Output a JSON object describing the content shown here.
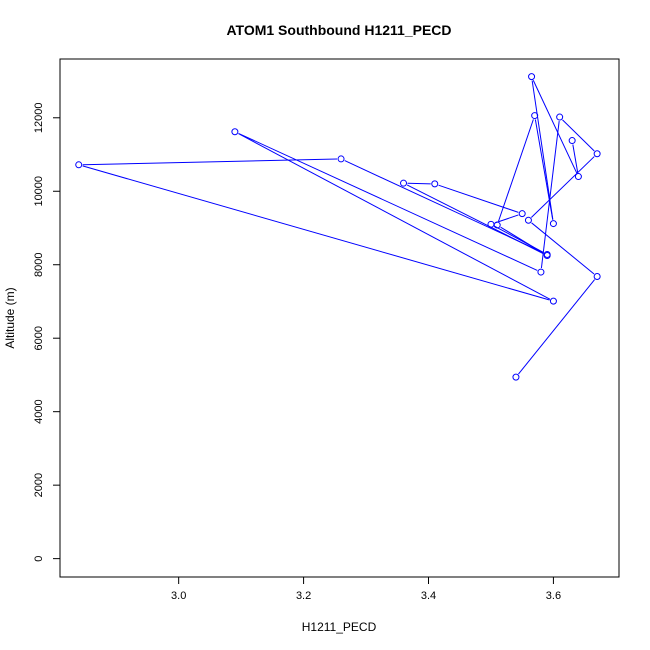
{
  "chart_data": {
    "type": "line",
    "title": "ATOM1 Southbound H1211_PECD",
    "xlabel": "H1211_PECD",
    "ylabel": "Altitude (m)",
    "xlim": [
      2.81,
      3.705
    ],
    "ylim": [
      -500,
      13600
    ],
    "x_ticks": [
      3.0,
      3.2,
      3.4,
      3.6
    ],
    "x_tick_labels": [
      "3.0",
      "3.2",
      "3.4",
      "3.6"
    ],
    "y_ticks": [
      0,
      2000,
      4000,
      6000,
      8000,
      10000,
      12000
    ],
    "y_tick_labels": [
      "0",
      "2000",
      "4000",
      "6000",
      "8000",
      "10000",
      "12000"
    ],
    "grid": false,
    "legend": "none",
    "series": [
      {
        "color": "#0000ff",
        "marker": "open-circle",
        "points": [
          [
            3.54,
            4940
          ],
          [
            3.67,
            7680
          ],
          [
            3.56,
            9210
          ],
          [
            3.67,
            11020
          ],
          [
            3.61,
            12020
          ],
          [
            3.58,
            7800
          ],
          [
            3.09,
            11620
          ],
          [
            3.6,
            7010
          ],
          [
            2.84,
            10720
          ],
          [
            3.26,
            10880
          ],
          [
            3.59,
            8280
          ],
          [
            3.5,
            9100
          ],
          [
            3.55,
            9390
          ],
          [
            3.41,
            10200
          ],
          [
            3.36,
            10220
          ],
          [
            3.59,
            8250
          ],
          [
            3.51,
            9080
          ],
          [
            3.57,
            12060
          ],
          [
            3.6,
            9120
          ],
          [
            3.565,
            13120
          ],
          [
            3.64,
            10400
          ],
          [
            3.63,
            11380
          ]
        ]
      }
    ]
  }
}
